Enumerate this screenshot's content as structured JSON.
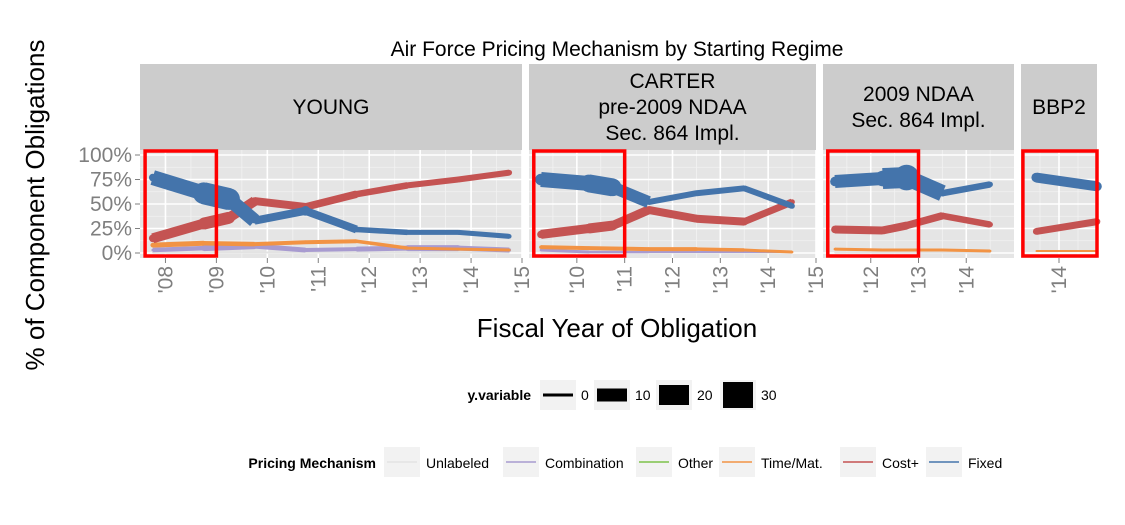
{
  "chart_data": {
    "type": "line",
    "title": "Air Force Pricing Mechanism by Starting Regime",
    "xlabel": "Fiscal Year of Obligation",
    "ylabel": "% of Component Obligations",
    "ylim": [
      0,
      1
    ],
    "y_ticks": [
      "0%",
      "25%",
      "50%",
      "75%",
      "100%"
    ],
    "line_width_legend": {
      "title": "y.variable",
      "entries": [
        "0",
        "10",
        "20",
        "30"
      ]
    },
    "color_legend": {
      "title": "Pricing Mechanism",
      "entries": [
        {
          "name": "Unlabeled",
          "color": "#e3e3e3"
        },
        {
          "name": "Combination",
          "color": "#a89bd0"
        },
        {
          "name": "Other",
          "color": "#7dc24a"
        },
        {
          "name": "Time/Mat.",
          "color": "#f29344"
        },
        {
          "name": "Cost+",
          "color": "#c45352"
        },
        {
          "name": "Fixed",
          "color": "#4474ab"
        }
      ]
    },
    "panels": [
      {
        "strip": [
          "YOUNG"
        ],
        "xlim": [
          2007.5,
          2015.0
        ],
        "x_ticks": [
          "'08",
          "'09",
          "'10",
          "'11",
          "'12",
          "'13",
          "'14",
          "'15"
        ],
        "x_tick_values": [
          2008,
          2009,
          2010,
          2011,
          2012,
          2013,
          2014,
          2015
        ],
        "highlight_x": [
          2007.6,
          2009.0
        ],
        "series": [
          {
            "name": "Fixed",
            "x": [
              2007.75,
              2008.75,
              2009.25,
              2009.75,
              2010.75,
              2011.75,
              2012.75,
              2013.75,
              2014.75
            ],
            "y": [
              0.77,
              0.61,
              0.55,
              0.33,
              0.43,
              0.24,
              0.21,
              0.21,
              0.17
            ],
            "w": [
              8,
              22,
              22,
              6,
              10,
              6,
              5,
              5,
              5
            ]
          },
          {
            "name": "Cost+",
            "x": [
              2007.75,
              2008.75,
              2009.25,
              2009.75,
              2010.75,
              2011.75,
              2012.75,
              2013.75,
              2014.75
            ],
            "y": [
              0.15,
              0.3,
              0.36,
              0.53,
              0.47,
              0.6,
              0.69,
              0.75,
              0.82
            ],
            "w": [
              8,
              12,
              12,
              8,
              8,
              7,
              6,
              6,
              6
            ]
          },
          {
            "name": "Time/Mat.",
            "x": [
              2007.75,
              2008.75,
              2009.75,
              2010.75,
              2011.75,
              2012.75,
              2013.75,
              2014.75
            ],
            "y": [
              0.08,
              0.1,
              0.09,
              0.11,
              0.12,
              0.05,
              0.04,
              0.03
            ],
            "w": [
              5,
              5,
              4,
              4,
              4,
              3,
              3,
              3
            ]
          },
          {
            "name": "Combination",
            "x": [
              2007.75,
              2008.75,
              2009.75,
              2010.75,
              2011.75,
              2012.75,
              2013.75,
              2014.75
            ],
            "y": [
              0.03,
              0.05,
              0.07,
              0.03,
              0.04,
              0.05,
              0.05,
              0.03
            ],
            "w": [
              3,
              6,
              6,
              4,
              4,
              6,
              6,
              4
            ]
          },
          {
            "name": "Unlabeled",
            "x": [
              2007.75,
              2014.75
            ],
            "y": [
              0.005,
              0.005
            ],
            "w": [
              2,
              2
            ]
          }
        ]
      },
      {
        "strip": [
          "CARTER",
          "pre-2009 NDAA",
          "Sec. 864 Impl."
        ],
        "xlim": [
          2009.0,
          2015.0
        ],
        "x_ticks": [
          "'10",
          "'11",
          "'12",
          "'13",
          "'14",
          "'15"
        ],
        "x_tick_values": [
          2010,
          2011,
          2012,
          2013,
          2014,
          2015
        ],
        "highlight_x": [
          2009.1,
          2011.0
        ],
        "series": [
          {
            "name": "Fixed",
            "x": [
              2009.25,
              2010.25,
              2010.75,
              2011.5,
              2012.5,
              2013.5,
              2014.5
            ],
            "y": [
              0.75,
              0.71,
              0.67,
              0.52,
              0.61,
              0.66,
              0.48
            ],
            "w": [
              12,
              18,
              18,
              6,
              6,
              6,
              6
            ]
          },
          {
            "name": "Cost+",
            "x": [
              2009.25,
              2010.25,
              2010.75,
              2011.5,
              2012.5,
              2013.5,
              2014.5
            ],
            "y": [
              0.19,
              0.25,
              0.28,
              0.44,
              0.35,
              0.32,
              0.52
            ],
            "w": [
              8,
              10,
              10,
              8,
              8,
              8,
              6
            ]
          },
          {
            "name": "Time/Mat.",
            "x": [
              2009.25,
              2010.25,
              2011.5,
              2012.5,
              2013.5,
              2014.5
            ],
            "y": [
              0.06,
              0.05,
              0.04,
              0.04,
              0.03,
              0.01
            ],
            "w": [
              4,
              4,
              4,
              4,
              3,
              3
            ]
          },
          {
            "name": "Combination",
            "x": [
              2009.25,
              2010.25,
              2011.5,
              2012.5,
              2013.5,
              2014.5
            ],
            "y": [
              0.03,
              0.01,
              0.01,
              0.01,
              0.01,
              0.01
            ],
            "w": [
              3,
              3,
              2,
              2,
              2,
              2
            ]
          },
          {
            "name": "Unlabeled",
            "x": [
              2009.25,
              2014.5
            ],
            "y": [
              0.005,
              0.005
            ],
            "w": [
              2,
              2
            ]
          }
        ]
      },
      {
        "strip": [
          "2009 NDAA",
          "Sec. 864 Impl."
        ],
        "xlim": [
          2011.0,
          2015.0
        ],
        "x_ticks": [
          "'12",
          "'13",
          "'14"
        ],
        "x_tick_values": [
          2012,
          2013,
          2014
        ],
        "highlight_x": [
          2011.1,
          2013.0
        ],
        "series": [
          {
            "name": "Fixed",
            "x": [
              2011.25,
              2012.25,
              2012.75,
              2013.5,
              2014.5
            ],
            "y": [
              0.73,
              0.76,
              0.77,
              0.61,
              0.7
            ],
            "w": [
              10,
              16,
              26,
              7,
              6
            ]
          },
          {
            "name": "Cost+",
            "x": [
              2011.25,
              2012.25,
              2012.75,
              2013.5,
              2014.5
            ],
            "y": [
              0.24,
              0.23,
              0.28,
              0.38,
              0.29
            ],
            "w": [
              8,
              8,
              8,
              7,
              6
            ]
          },
          {
            "name": "Time/Mat.",
            "x": [
              2011.25,
              2012.25,
              2013.5,
              2014.5
            ],
            "y": [
              0.04,
              0.03,
              0.03,
              0.02
            ],
            "w": [
              3,
              3,
              3,
              3
            ]
          },
          {
            "name": "Unlabeled",
            "x": [
              2011.25,
              2014.5
            ],
            "y": [
              0.005,
              0.005
            ],
            "w": [
              2,
              2
            ]
          }
        ]
      },
      {
        "strip": [
          "BBP2"
        ],
        "xlim": [
          2013.0,
          2015.0
        ],
        "x_ticks": [
          "'14"
        ],
        "x_tick_values": [
          2014
        ],
        "highlight_x": [
          2013.05,
          2015.0
        ],
        "series": [
          {
            "name": "Fixed",
            "x": [
              2013.4,
              2015.0
            ],
            "y": [
              0.77,
              0.68
            ],
            "w": [
              10,
              10
            ]
          },
          {
            "name": "Cost+",
            "x": [
              2013.4,
              2015.0
            ],
            "y": [
              0.22,
              0.32
            ],
            "w": [
              7,
              7
            ]
          },
          {
            "name": "Time/Mat.",
            "x": [
              2013.4,
              2015.0
            ],
            "y": [
              0.02,
              0.02
            ],
            "w": [
              2,
              2
            ]
          }
        ]
      }
    ]
  }
}
